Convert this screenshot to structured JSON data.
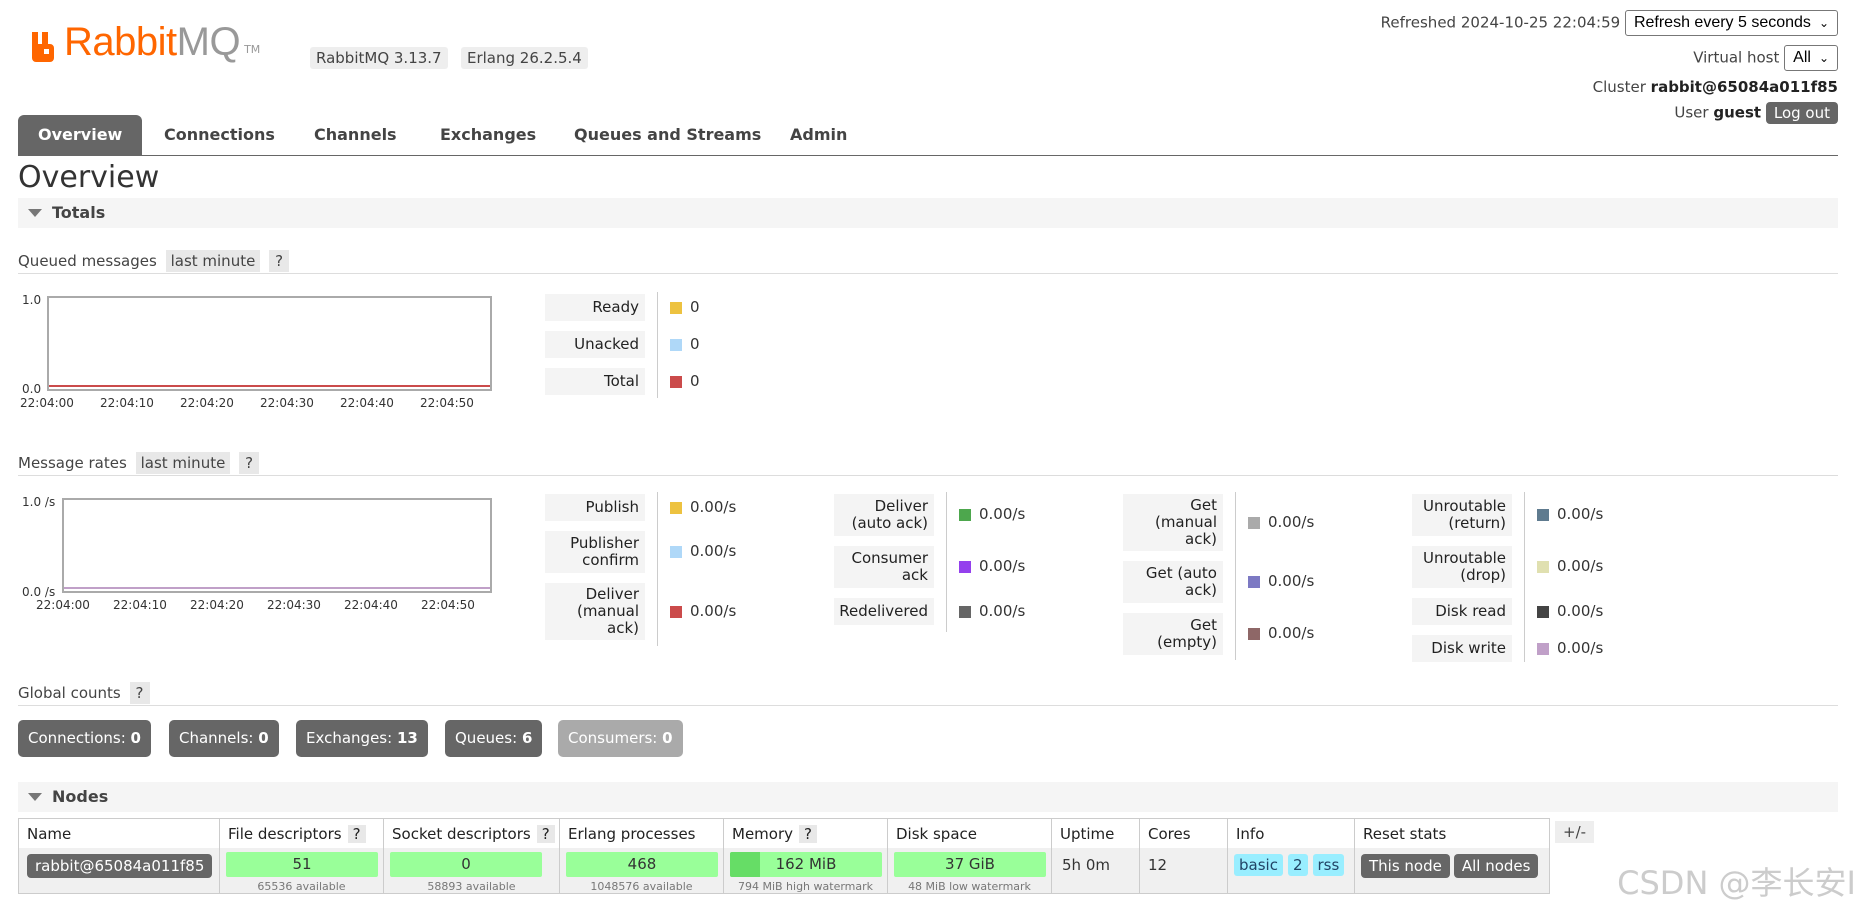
{
  "header": {
    "logo_rabbit": "Rabbit",
    "logo_mq": "MQ",
    "logo_tm": "TM",
    "version": "RabbitMQ 3.13.7",
    "erlang": "Erlang 26.2.5.4",
    "refreshed_label": "Refreshed",
    "refreshed_time": "2024-10-25 22:04:59",
    "refresh_select": "Refresh every 5 seconds",
    "vhost_label": "Virtual host",
    "vhost_select": "All",
    "cluster_label": "Cluster",
    "cluster_name": "rabbit@65084a011f85",
    "user_label": "User",
    "user_name": "guest",
    "logout": "Log out"
  },
  "tabs": [
    "Overview",
    "Connections",
    "Channels",
    "Exchanges",
    "Queues and Streams",
    "Admin"
  ],
  "page_title": "Overview",
  "totals": {
    "section_label": "Totals",
    "queued": {
      "label": "Queued messages",
      "range": "last minute",
      "help": "?",
      "y_max": "1.0",
      "y_min": "0.0",
      "x_ticks": [
        "22:04:00",
        "22:04:10",
        "22:04:20",
        "22:04:30",
        "22:04:40",
        "22:04:50"
      ],
      "legend": [
        {
          "label": "Ready",
          "value": "0",
          "color": "#edc240"
        },
        {
          "label": "Unacked",
          "value": "0",
          "color": "#afd8f8"
        },
        {
          "label": "Total",
          "value": "0",
          "color": "#cb4b4b"
        }
      ]
    },
    "rates": {
      "label": "Message rates",
      "range": "last minute",
      "help": "?",
      "y_max": "1.0 /s",
      "y_min": "0.0 /s",
      "x_ticks": [
        "22:04:00",
        "22:04:10",
        "22:04:20",
        "22:04:30",
        "22:04:40",
        "22:04:50"
      ],
      "col1": [
        {
          "label": "Publish",
          "value": "0.00/s",
          "color": "#edc240"
        },
        {
          "label": "Publisher confirm",
          "value": "0.00/s",
          "color": "#afd8f8"
        },
        {
          "label": "Deliver (manual ack)",
          "value": "0.00/s",
          "color": "#cb4b4b"
        }
      ],
      "col2": [
        {
          "label": "Deliver (auto ack)",
          "value": "0.00/s",
          "color": "#4da74d"
        },
        {
          "label": "Consumer ack",
          "value": "0.00/s",
          "color": "#9440ed"
        },
        {
          "label": "Redelivered",
          "value": "0.00/s",
          "color": "#666666"
        }
      ],
      "col3": [
        {
          "label": "Get (manual ack)",
          "value": "0.00/s",
          "color": "#aaaaaa"
        },
        {
          "label": "Get (auto ack)",
          "value": "0.00/s",
          "color": "#7c79c3"
        },
        {
          "label": "Get (empty)",
          "value": "0.00/s",
          "color": "#8e6767"
        }
      ],
      "col4": [
        {
          "label": "Unroutable (return)",
          "value": "0.00/s",
          "color": "#5f7b8f"
        },
        {
          "label": "Unroutable (drop)",
          "value": "0.00/s",
          "color": "#e0e0b0"
        },
        {
          "label": "Disk read",
          "value": "0.00/s",
          "color": "#444444"
        },
        {
          "label": "Disk write",
          "value": "0.00/s",
          "color": "#c0a0c8"
        }
      ]
    },
    "global": {
      "label": "Global counts",
      "help": "?",
      "counts": [
        {
          "label": "Connections:",
          "value": "0"
        },
        {
          "label": "Channels:",
          "value": "0"
        },
        {
          "label": "Exchanges:",
          "value": "13"
        },
        {
          "label": "Queues:",
          "value": "6"
        },
        {
          "label": "Consumers:",
          "value": "0"
        }
      ]
    }
  },
  "nodes": {
    "section_label": "Nodes",
    "headers": {
      "name": "Name",
      "fd": "File descriptors",
      "sd": "Socket descriptors",
      "ep": "Erlang processes",
      "mem": "Memory",
      "disk": "Disk space",
      "uptime": "Uptime",
      "cores": "Cores",
      "info": "Info",
      "reset": "Reset stats",
      "help": "?"
    },
    "plusminus": "+/-",
    "row": {
      "name": "rabbit@65084a011f85",
      "fd_value": "51",
      "fd_sub": "65536 available",
      "fd_fill": 0.001,
      "sd_value": "0",
      "sd_sub": "58893 available",
      "sd_fill": 0,
      "ep_value": "468",
      "ep_sub": "1048576 available",
      "ep_fill": 0.0004,
      "mem_value": "162 MiB",
      "mem_sub": "794 MiB high watermark",
      "mem_fill": 0.2,
      "disk_value": "37 GiB",
      "disk_sub": "48 MiB low watermark",
      "uptime": "5h 0m",
      "cores": "12",
      "info_basic": "basic",
      "info_2": "2",
      "info_rss": "rss",
      "reset_this": "This node",
      "reset_all": "All nodes"
    }
  },
  "watermark": "CSDN @李长安I"
}
